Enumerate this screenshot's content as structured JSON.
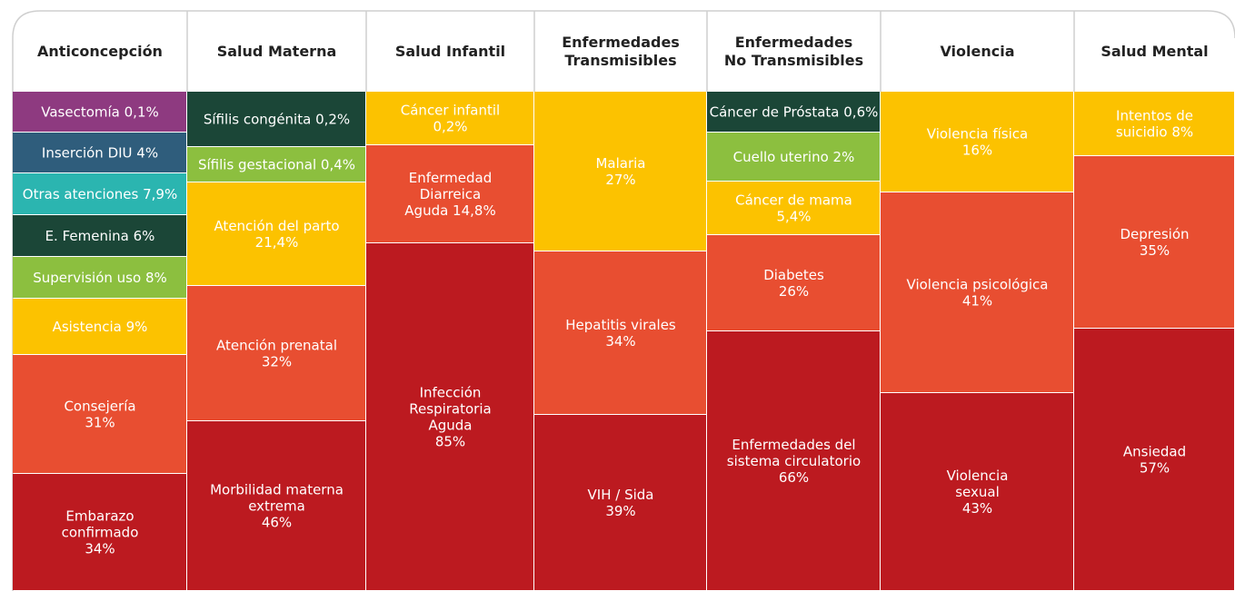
{
  "columns": [
    {
      "header": [
        "Anticoncepción"
      ],
      "segments": [
        {
          "lines": [
            "Vasectomía 0,1%"
          ],
          "color": "#8e3a80"
        },
        {
          "lines": [
            "Inserción DIU 4%"
          ],
          "color": "#2f5d7c"
        },
        {
          "lines": [
            "Otras atenciones 7,9%"
          ],
          "color": "#2bb5b0"
        },
        {
          "lines": [
            "E. Femenina 6%"
          ],
          "color": "#1b4637"
        },
        {
          "lines": [
            "Supervisión uso  8%"
          ],
          "color": "#8cbf3f"
        },
        {
          "lines": [
            "Asistencia 9%"
          ],
          "color": "#fcc200"
        },
        {
          "lines": [
            "Consejería",
            "31%"
          ],
          "color": "#e84e31"
        },
        {
          "lines": [
            "Embarazo",
            "confirmado",
            "34%"
          ],
          "color": "#bc1a20"
        }
      ]
    },
    {
      "header": [
        "Salud Materna"
      ],
      "segments": [
        {
          "lines": [
            "Sífilis congénita 0,2%"
          ],
          "color": "#1b4637"
        },
        {
          "lines": [
            "Sífilis gestacional 0,4%"
          ],
          "color": "#8cbf3f"
        },
        {
          "lines": [
            "Atención del parto",
            "21,4%"
          ],
          "color": "#fcc200"
        },
        {
          "lines": [
            "Atención prenatal",
            "32%"
          ],
          "color": "#e84e31"
        },
        {
          "lines": [
            "Morbilidad materna",
            "extrema",
            "46%"
          ],
          "color": "#bc1a20"
        }
      ]
    },
    {
      "header": [
        "Salud Infantil"
      ],
      "segments": [
        {
          "lines": [
            "Cáncer infantil",
            "0,2%"
          ],
          "color": "#fcc200"
        },
        {
          "lines": [
            "Enfermedad",
            "Diarreica",
            "Aguda 14,8%"
          ],
          "color": "#e84e31"
        },
        {
          "lines": [
            "Infección",
            "Respiratoria",
            "Aguda",
            "85%"
          ],
          "color": "#bc1a20"
        }
      ]
    },
    {
      "header": [
        "Enfermedades",
        "Transmisibles"
      ],
      "segments": [
        {
          "lines": [
            "Malaria",
            "27%"
          ],
          "color": "#fcc200"
        },
        {
          "lines": [
            "Hepatitis virales",
            "34%"
          ],
          "color": "#e84e31"
        },
        {
          "lines": [
            "VIH / Sida",
            "39%"
          ],
          "color": "#bc1a20"
        }
      ]
    },
    {
      "header": [
        "Enfermedades",
        "No Transmisibles"
      ],
      "segments": [
        {
          "lines": [
            "Cáncer de Próstata 0,6%"
          ],
          "color": "#1b4637"
        },
        {
          "lines": [
            "Cuello uterino 2%"
          ],
          "color": "#8cbf3f"
        },
        {
          "lines": [
            "Cáncer de mama",
            "5,4%"
          ],
          "color": "#fcc200"
        },
        {
          "lines": [
            "Diabetes",
            "26%"
          ],
          "color": "#e84e31"
        },
        {
          "lines": [
            "Enfermedades del",
            "sistema circulatorio",
            "66%"
          ],
          "color": "#bc1a20"
        }
      ]
    },
    {
      "header": [
        "Violencia"
      ],
      "segments": [
        {
          "lines": [
            "Violencia física",
            "16%"
          ],
          "color": "#fcc200"
        },
        {
          "lines": [
            "Violencia psicológica",
            "41%"
          ],
          "color": "#e84e31"
        },
        {
          "lines": [
            "Violencia",
            "sexual",
            "43%"
          ],
          "color": "#bc1a20"
        }
      ]
    },
    {
      "header": [
        "Salud Mental"
      ],
      "segments": [
        {
          "lines": [
            "Intentos de",
            "suicidio 8%"
          ],
          "color": "#fcc200"
        },
        {
          "lines": [
            "Depresión",
            "35%"
          ],
          "color": "#e84e31"
        },
        {
          "lines": [
            "Ansiedad",
            "57%"
          ],
          "color": "#bc1a20"
        }
      ]
    }
  ]
}
